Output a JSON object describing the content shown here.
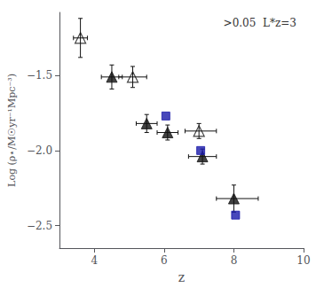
{
  "chart_data": {
    "type": "scatter",
    "xlabel": "z",
    "ylabel": "Log (ρ⋆/M☉yr⁻¹Mpc⁻³)",
    "annotation": ">0.05  L*z=3",
    "xlim": [
      3,
      10
    ],
    "ylim": [
      -2.65,
      -1.08
    ],
    "xticks": [
      4,
      6,
      8,
      10
    ],
    "yticks": [
      {
        "value": -2.5,
        "label": "−2.5"
      },
      {
        "value": -2.0,
        "label": "−2.0"
      },
      {
        "value": -1.5,
        "label": "−1.5"
      }
    ],
    "grid": false,
    "series": [
      {
        "marker": "open-triangle",
        "color": "#111111",
        "x": [
          3.6,
          5.1,
          7.0
        ],
        "values": [
          -1.25,
          -1.51,
          -1.87
        ],
        "xerr_lo": [
          0.2,
          0.4,
          0.4
        ],
        "xerr_hi": [
          0.2,
          0.4,
          0.5
        ],
        "yerr_lo": [
          0.13,
          0.07,
          0.05
        ],
        "yerr_hi": [
          0.13,
          0.07,
          0.05
        ]
      },
      {
        "marker": "triangle",
        "color": "#111111",
        "x": [
          4.5,
          5.5,
          6.1,
          7.1,
          8.0
        ],
        "values": [
          -1.51,
          -1.82,
          -1.88,
          -2.04,
          -2.32
        ],
        "xerr_lo": [
          0.3,
          0.3,
          0.3,
          0.4,
          0.5
        ],
        "xerr_hi": [
          0.3,
          0.3,
          0.3,
          0.4,
          0.7
        ],
        "yerr_lo": [
          0.08,
          0.06,
          0.05,
          0.05,
          0.09
        ],
        "yerr_hi": [
          0.08,
          0.06,
          0.05,
          0.05,
          0.09
        ]
      },
      {
        "marker": "square",
        "color": "#1a1aaa",
        "x": [
          6.05,
          7.05,
          8.05
        ],
        "values": [
          -1.77,
          -2.0,
          -2.43
        ]
      }
    ]
  }
}
